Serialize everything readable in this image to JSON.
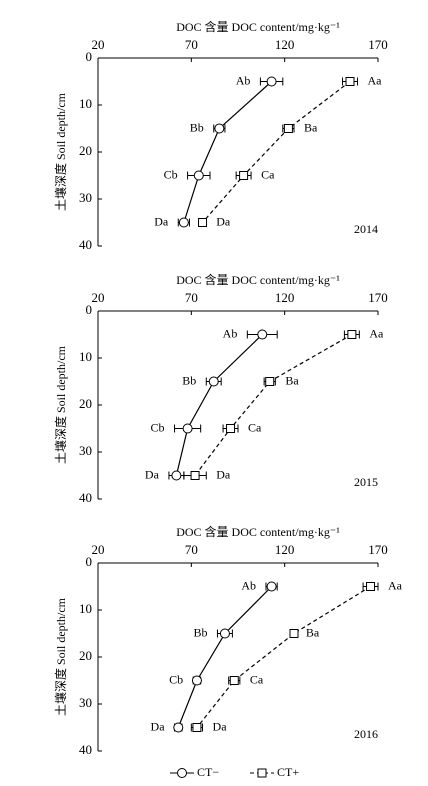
{
  "chart_data": [
    {
      "type": "line",
      "xlabel": "DOC 含量 DOC content/mg·kg⁻¹",
      "ylabel": "土壤深度 Soil depth/cm",
      "annotation": "2014",
      "xlim": [
        20,
        170
      ],
      "xticks": [
        20,
        70,
        120,
        170
      ],
      "ylim": [
        0,
        40
      ],
      "yticks": [
        0,
        10,
        20,
        30,
        40
      ],
      "y_inverted": true,
      "y": [
        5,
        15,
        25,
        35
      ],
      "series": [
        {
          "color": "#000000",
          "marker": "circle",
          "dashed": false,
          "label_side": "left",
          "values": [
            113,
            85,
            74,
            66
          ],
          "errors": [
            6,
            3,
            6,
            3
          ],
          "point_labels": [
            "Ab",
            "Bb",
            "Cb",
            "Da"
          ]
        },
        {
          "color": "#000000",
          "marker": "square",
          "dashed": true,
          "label_side": "right",
          "values": [
            155,
            122,
            98,
            76
          ],
          "errors": [
            4,
            3,
            4,
            2
          ],
          "point_labels": [
            "Aa",
            "Ba",
            "Ca",
            "Da"
          ]
        }
      ]
    },
    {
      "type": "line",
      "xlabel": "DOC 含量 DOC content/mg·kg⁻¹",
      "ylabel": "土壤深度 Soil depth/cm",
      "annotation": "2015",
      "xlim": [
        20,
        170
      ],
      "xticks": [
        20,
        70,
        120,
        170
      ],
      "ylim": [
        0,
        40
      ],
      "yticks": [
        0,
        10,
        20,
        30,
        40
      ],
      "y_inverted": true,
      "y": [
        5,
        15,
        25,
        35
      ],
      "series": [
        {
          "color": "#000000",
          "marker": "circle",
          "dashed": false,
          "label_side": "left",
          "values": [
            108,
            82,
            68,
            62
          ],
          "errors": [
            8,
            4,
            7,
            4
          ],
          "point_labels": [
            "Ab",
            "Bb",
            "Cb",
            "Da"
          ]
        },
        {
          "color": "#000000",
          "marker": "square",
          "dashed": true,
          "label_side": "right",
          "values": [
            156,
            112,
            91,
            72
          ],
          "errors": [
            4,
            3,
            4,
            6
          ],
          "point_labels": [
            "Aa",
            "Ba",
            "Ca",
            "Da"
          ]
        }
      ]
    },
    {
      "type": "line",
      "xlabel": "DOC 含量 DOC content/mg·kg⁻¹",
      "ylabel": "土壤深度 Soil depth/cm",
      "annotation": "2016",
      "xlim": [
        20,
        170
      ],
      "xticks": [
        20,
        70,
        120,
        170
      ],
      "ylim": [
        0,
        40
      ],
      "yticks": [
        0,
        10,
        20,
        30,
        40
      ],
      "y_inverted": true,
      "y": [
        5,
        15,
        25,
        35
      ],
      "series": [
        {
          "name": "CT−",
          "color": "#000000",
          "marker": "circle",
          "dashed": false,
          "label_side": "left",
          "values": [
            113,
            88,
            73,
            63
          ],
          "errors": [
            3,
            4,
            2,
            2
          ],
          "point_labels": [
            "Ab",
            "Bb",
            "Cb",
            "Da"
          ]
        },
        {
          "name": "CT+",
          "color": "#000000",
          "marker": "square",
          "dashed": true,
          "label_side": "right",
          "values": [
            166,
            125,
            93,
            73
          ],
          "errors": [
            4,
            1,
            3,
            3
          ],
          "point_labels": [
            "Aa",
            "Ba",
            "Ca",
            "Da"
          ]
        }
      ]
    }
  ]
}
